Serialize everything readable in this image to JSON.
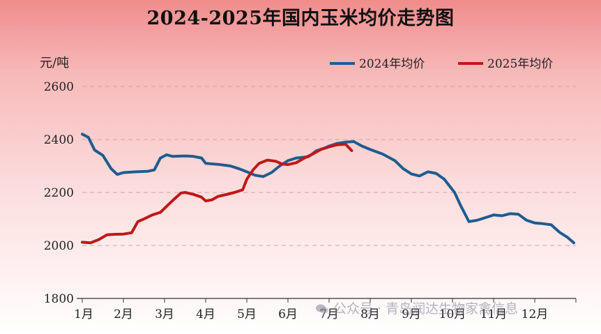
{
  "title": "2024-2025年国内玉米均价走势图",
  "watermark": "公众号 · 青岛润达生物家禽信息",
  "colors": {
    "series_2024": "#1f5c8f",
    "series_2025": "#c01818",
    "grid": "#d9a0a0",
    "axis": "#333333"
  },
  "chart_data": {
    "type": "line",
    "title": "2024-2025年国内玉米均价走势图",
    "ylabel": "元/吨",
    "xlabel": "",
    "ylim": [
      1800,
      2600
    ],
    "yticks": [
      "1800",
      "2000",
      "2200",
      "2400",
      "2600"
    ],
    "xlim": [
      1,
      13
    ],
    "xticks": [
      "1月",
      "2月",
      "3月",
      "4月",
      "5月",
      "6月",
      "7月",
      "8月",
      "9月",
      "10月",
      "11月",
      "12月"
    ],
    "grid": "horizontal dashed",
    "legend_position": "top-right",
    "series": [
      {
        "name": "2024年均价",
        "color": "#1f5c8f",
        "x": [
          1.0,
          1.15,
          1.3,
          1.5,
          1.7,
          1.85,
          2.0,
          2.3,
          2.6,
          2.75,
          2.9,
          3.05,
          3.2,
          3.5,
          3.7,
          3.9,
          4.0,
          4.3,
          4.6,
          4.8,
          5.0,
          5.2,
          5.4,
          5.6,
          5.8,
          6.0,
          6.2,
          6.5,
          6.7,
          6.9,
          7.0,
          7.2,
          7.4,
          7.6,
          7.8,
          8.0,
          8.3,
          8.6,
          8.8,
          9.0,
          9.2,
          9.4,
          9.6,
          9.8,
          9.95,
          10.05,
          10.2,
          10.4,
          10.6,
          10.8,
          11.0,
          11.2,
          11.4,
          11.6,
          11.8,
          12.0,
          12.2,
          12.4,
          12.6,
          12.8,
          12.95
        ],
        "values": [
          2420,
          2408,
          2360,
          2340,
          2290,
          2268,
          2275,
          2278,
          2280,
          2285,
          2330,
          2342,
          2336,
          2338,
          2336,
          2330,
          2310,
          2306,
          2300,
          2290,
          2278,
          2265,
          2260,
          2275,
          2300,
          2320,
          2330,
          2335,
          2358,
          2368,
          2375,
          2385,
          2390,
          2392,
          2375,
          2362,
          2345,
          2320,
          2290,
          2270,
          2262,
          2278,
          2272,
          2250,
          2220,
          2200,
          2150,
          2090,
          2095,
          2105,
          2115,
          2112,
          2120,
          2118,
          2095,
          2085,
          2082,
          2078,
          2050,
          2030,
          2010
        ]
      },
      {
        "name": "2025年均价",
        "color": "#c01818",
        "x": [
          1.0,
          1.2,
          1.4,
          1.6,
          1.8,
          2.0,
          2.2,
          2.35,
          2.5,
          2.7,
          2.9,
          3.0,
          3.2,
          3.4,
          3.5,
          3.7,
          3.9,
          4.0,
          4.15,
          4.3,
          4.5,
          4.7,
          4.9,
          5.0,
          5.15,
          5.3,
          5.5,
          5.7,
          5.85,
          6.0,
          6.2,
          6.4,
          6.6,
          6.8,
          7.0,
          7.2,
          7.4,
          7.55
        ],
        "values": [
          2012,
          2010,
          2022,
          2040,
          2042,
          2043,
          2048,
          2090,
          2100,
          2115,
          2125,
          2140,
          2170,
          2198,
          2200,
          2193,
          2182,
          2168,
          2172,
          2185,
          2192,
          2200,
          2210,
          2250,
          2285,
          2310,
          2322,
          2318,
          2308,
          2305,
          2312,
          2330,
          2345,
          2362,
          2372,
          2380,
          2382,
          2358
        ]
      }
    ]
  }
}
